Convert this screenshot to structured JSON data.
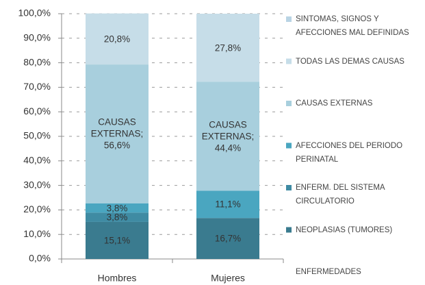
{
  "chart_data": {
    "type": "stacked_bar",
    "categories": [
      "Hombres",
      "Mujeres"
    ],
    "ylim": [
      0,
      100
    ],
    "yticks": [
      {
        "value": 0,
        "label": "0,0%"
      },
      {
        "value": 10,
        "label": "10,0%"
      },
      {
        "value": 20,
        "label": "20,0%"
      },
      {
        "value": 30,
        "label": "30,0%"
      },
      {
        "value": 40,
        "label": "40,0%"
      },
      {
        "value": 50,
        "label": "50,0%"
      },
      {
        "value": 60,
        "label": "60,0%"
      },
      {
        "value": 70,
        "label": "70,0%"
      },
      {
        "value": 80,
        "label": "80,0%"
      },
      {
        "value": 90,
        "label": "90,0%"
      },
      {
        "value": 100,
        "label": "100,0%"
      }
    ],
    "grid": true,
    "series": [
      {
        "name": "ENFERMEDADES",
        "color": "none",
        "values": [
          0,
          0
        ],
        "value_labels": [
          null,
          null
        ]
      },
      {
        "name": "NEOPLASIAS (TUMORES)",
        "color": "#3a7b8f",
        "values": [
          15.1,
          16.7
        ],
        "value_labels": [
          "15,1%",
          "16,7%"
        ]
      },
      {
        "name": "ENFERM. DEL SISTEMA CIRCULATORIO",
        "color": "#3f8ba3",
        "values": [
          3.8,
          0
        ],
        "value_labels": [
          "3,8%",
          null
        ]
      },
      {
        "name": "AFECCIONES DEL PERIODO  PERINATAL",
        "color": "#4aa6c0",
        "values": [
          3.8,
          11.1
        ],
        "value_labels": [
          "3,8%",
          "11,1%"
        ]
      },
      {
        "name": "CAUSAS EXTERNAS",
        "color": "#a8cfdd",
        "values": [
          56.6,
          44.4
        ],
        "value_labels": [
          "CAUSAS EXTERNAS; 56,6%",
          "CAUSAS EXTERNAS; 44,4%"
        ]
      },
      {
        "name": "TODAS LAS DEMAS CAUSAS",
        "color": "#c6dde8",
        "values": [
          20.8,
          27.8
        ],
        "value_labels": [
          "20,8%",
          "27,8%"
        ]
      },
      {
        "name": "SINTOMAS, SIGNOS Y AFECCIONES MAL DEFINIDAS",
        "color": "#b9d4e4",
        "values": [
          0,
          0
        ],
        "value_labels": [
          null,
          null
        ]
      }
    ]
  }
}
